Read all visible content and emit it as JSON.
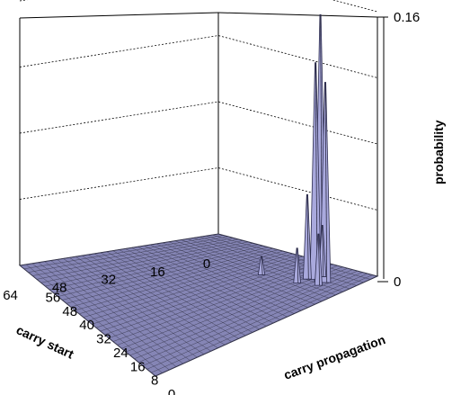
{
  "chart_data": {
    "type": "surface",
    "title": "",
    "x_axis": {
      "label": "carry start",
      "min": 0,
      "max": 64,
      "ticks": [
        "0",
        "16",
        "32",
        "48",
        "64"
      ]
    },
    "y_axis": {
      "label": "carry propagation",
      "min": 0,
      "max": 64,
      "ticks": [
        "0",
        "8",
        "16",
        "24",
        "32",
        "40",
        "48",
        "56"
      ]
    },
    "z_axis": {
      "label": "probability",
      "min": 0,
      "max": 0.16,
      "ticks": [
        "0",
        "0.16"
      ]
    },
    "grid": true,
    "surface_color": "#a9a9dd",
    "peaks": [
      {
        "carry_start": 8,
        "carry_propagation": 12,
        "probability": 0.16
      },
      {
        "carry_start": 8,
        "carry_propagation": 14,
        "probability": 0.13
      },
      {
        "carry_start": 8,
        "carry_propagation": 10,
        "probability": 0.12
      },
      {
        "carry_start": 9,
        "carry_propagation": 16,
        "probability": 0.05
      },
      {
        "carry_start": 6,
        "carry_propagation": 14,
        "probability": 0.03
      },
      {
        "carry_start": 10,
        "carry_propagation": 10,
        "probability": 0.03
      },
      {
        "carry_start": 12,
        "carry_propagation": 16,
        "probability": 0.02
      },
      {
        "carry_start": 14,
        "carry_propagation": 28,
        "probability": 0.01
      }
    ]
  }
}
